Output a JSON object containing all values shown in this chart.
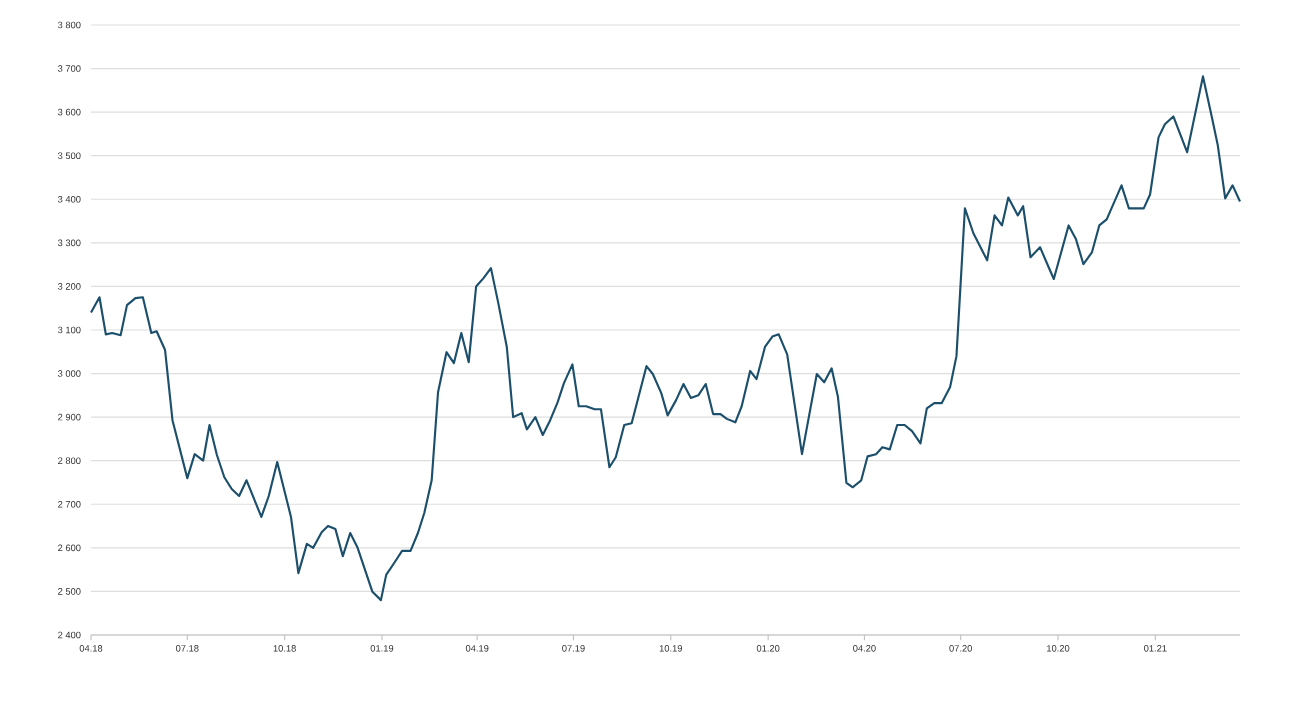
{
  "chart_data": {
    "type": "line",
    "x": [
      "2018-04-01",
      "2018-04-09",
      "2018-04-15",
      "2018-04-21",
      "2018-04-29",
      "2018-05-05",
      "2018-05-13",
      "2018-05-20",
      "2018-05-28",
      "2018-06-02",
      "2018-06-10",
      "2018-06-17",
      "2018-07-01",
      "2018-07-08",
      "2018-07-16",
      "2018-07-22",
      "2018-07-29",
      "2018-08-05",
      "2018-08-12",
      "2018-08-19",
      "2018-08-26",
      "2018-09-09",
      "2018-09-16",
      "2018-09-24",
      "2018-10-07",
      "2018-10-14",
      "2018-10-22",
      "2018-10-28",
      "2018-11-05",
      "2018-11-11",
      "2018-11-18",
      "2018-11-25",
      "2018-12-02",
      "2018-12-09",
      "2018-12-23",
      "2018-12-31",
      "2019-01-05",
      "2019-01-13",
      "2019-01-20",
      "2019-01-28",
      "2019-02-04",
      "2019-02-10",
      "2019-02-17",
      "2019-02-23",
      "2019-03-03",
      "2019-03-10",
      "2019-03-17",
      "2019-03-24",
      "2019-03-31",
      "2019-04-07",
      "2019-04-14",
      "2019-04-21",
      "2019-04-29",
      "2019-05-05",
      "2019-05-13",
      "2019-05-18",
      "2019-05-26",
      "2019-06-02",
      "2019-06-09",
      "2019-06-16",
      "2019-06-22",
      "2019-06-30",
      "2019-07-06",
      "2019-07-13",
      "2019-07-21",
      "2019-07-27",
      "2019-08-04",
      "2019-08-10",
      "2019-08-18",
      "2019-08-25",
      "2019-09-08",
      "2019-09-14",
      "2019-09-22",
      "2019-09-28",
      "2019-10-06",
      "2019-10-13",
      "2019-10-20",
      "2019-10-27",
      "2019-11-03",
      "2019-11-10",
      "2019-11-17",
      "2019-11-23",
      "2019-12-01",
      "2019-12-07",
      "2019-12-15",
      "2019-12-21",
      "2019-12-29",
      "2020-01-05",
      "2020-01-11",
      "2020-01-19",
      "2020-02-02",
      "2020-02-16",
      "2020-02-23",
      "2020-03-01",
      "2020-03-07",
      "2020-03-15",
      "2020-03-21",
      "2020-03-29",
      "2020-04-04",
      "2020-04-12",
      "2020-04-18",
      "2020-04-25",
      "2020-05-02",
      "2020-05-09",
      "2020-05-16",
      "2020-05-24",
      "2020-05-30",
      "2020-06-06",
      "2020-06-13",
      "2020-06-21",
      "2020-06-27",
      "2020-07-05",
      "2020-07-13",
      "2020-07-26",
      "2020-08-02",
      "2020-08-09",
      "2020-08-15",
      "2020-08-24",
      "2020-08-29",
      "2020-09-05",
      "2020-09-14",
      "2020-09-20",
      "2020-09-27",
      "2020-10-11",
      "2020-10-18",
      "2020-10-25",
      "2020-11-02",
      "2020-11-09",
      "2020-11-16",
      "2020-11-30",
      "2020-12-07",
      "2020-12-21",
      "2020-12-27",
      "2021-01-04",
      "2021-01-10",
      "2021-01-18",
      "2021-01-31",
      "2021-02-15",
      "2021-02-23",
      "2021-03-01",
      "2021-03-08",
      "2021-03-15",
      "2021-03-22"
    ],
    "values": [
      3140,
      3175,
      3090,
      3093,
      3088,
      3157,
      3173,
      3175,
      3093,
      3097,
      3054,
      2893,
      2760,
      2815,
      2800,
      2882,
      2813,
      2762,
      2735,
      2719,
      2755,
      2671,
      2719,
      2797,
      2671,
      2542,
      2609,
      2600,
      2636,
      2650,
      2643,
      2581,
      2634,
      2600,
      2499,
      2480,
      2538,
      2567,
      2593,
      2593,
      2634,
      2680,
      2755,
      2957,
      3049,
      3024,
      3093,
      3026,
      3200,
      3219,
      3242,
      3161,
      3061,
      2900,
      2909,
      2872,
      2900,
      2859,
      2893,
      2934,
      2978,
      3021,
      2925,
      2925,
      2918,
      2918,
      2785,
      2808,
      2882,
      2886,
      3017,
      2999,
      2955,
      2904,
      2939,
      2976,
      2944,
      2950,
      2976,
      2907,
      2907,
      2896,
      2888,
      2925,
      3006,
      2987,
      3061,
      3085,
      3090,
      3044,
      2815,
      2999,
      2980,
      3012,
      2946,
      2749,
      2739,
      2755,
      2810,
      2815,
      2831,
      2826,
      2882,
      2882,
      2868,
      2840,
      2920,
      2932,
      2932,
      2969,
      3040,
      3379,
      3322,
      3260,
      3363,
      3340,
      3404,
      3363,
      3384,
      3267,
      3290,
      3256,
      3217,
      3340,
      3308,
      3251,
      3278,
      3340,
      3354,
      3432,
      3379,
      3379,
      3411,
      3542,
      3572,
      3590,
      3508,
      3682,
      3593,
      3524,
      3402,
      3432,
      3395
    ],
    "color": "#1b4f6b",
    "xlim": [
      "2018-04-01",
      "2021-03-22"
    ],
    "ylim": [
      2400,
      3800
    ],
    "xticks": [
      {
        "value": "2018-04",
        "label": "04.18"
      },
      {
        "value": "2018-07",
        "label": "07.18"
      },
      {
        "value": "2018-10",
        "label": "10.18"
      },
      {
        "value": "2019-01",
        "label": "01.19"
      },
      {
        "value": "2019-04",
        "label": "04.19"
      },
      {
        "value": "2019-07",
        "label": "07.19"
      },
      {
        "value": "2019-10",
        "label": "10.19"
      },
      {
        "value": "2020-01",
        "label": "01.20"
      },
      {
        "value": "2020-04",
        "label": "04.20"
      },
      {
        "value": "2020-07",
        "label": "07.20"
      },
      {
        "value": "2020-10",
        "label": "10.20"
      },
      {
        "value": "2021-01",
        "label": "01.21"
      }
    ],
    "yticks": [
      {
        "value": 2400,
        "label": "2 400"
      },
      {
        "value": 2500,
        "label": "2 500"
      },
      {
        "value": 2600,
        "label": "2 600"
      },
      {
        "value": 2700,
        "label": "2 700"
      },
      {
        "value": 2800,
        "label": "2 800"
      },
      {
        "value": 2900,
        "label": "2 900"
      },
      {
        "value": 3000,
        "label": "3 000"
      },
      {
        "value": 3100,
        "label": "3 100"
      },
      {
        "value": 3200,
        "label": "3 200"
      },
      {
        "value": 3300,
        "label": "3 300"
      },
      {
        "value": 3400,
        "label": "3 400"
      },
      {
        "value": 3500,
        "label": "3 500"
      },
      {
        "value": 3600,
        "label": "3 600"
      },
      {
        "value": 3700,
        "label": "3 700"
      },
      {
        "value": 3800,
        "label": "3 800"
      }
    ],
    "grid": "y"
  }
}
